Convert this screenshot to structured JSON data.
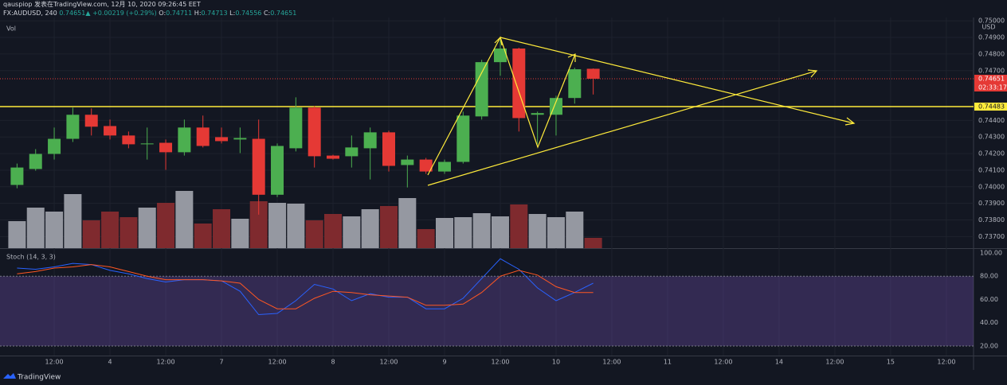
{
  "header": {
    "line1": "qauspiop 发表在TradingView.com, 12月 10, 2020 09:26:45 EET",
    "symbol": "FX:AUDUSD, 240",
    "price": "0.74651",
    "arrow": "▲",
    "change": "+0.00219 (+0.29%)",
    "o_label": "O:",
    "o": "0.74711",
    "h_label": "H:",
    "h": "0.74713",
    "l_label": "L:",
    "l": "0.74556",
    "c_label": "C:",
    "c": "0.74651"
  },
  "footer": {
    "logo": "TradingView"
  },
  "chart_data": [
    {
      "type": "candlestick",
      "currency": "USD",
      "volume_label": "Vol",
      "categories": [
        null,
        null,
        "12:00",
        null,
        null,
        "4",
        null,
        null,
        "12:00",
        null,
        null,
        "7",
        null,
        null,
        "12:00",
        null,
        null,
        "8",
        null,
        null,
        "12:00",
        null,
        null,
        "9",
        null,
        null,
        "12:00",
        null,
        null,
        "10",
        null,
        null,
        "12:00",
        null,
        null,
        "11",
        null,
        null,
        "12:00",
        null,
        null,
        "14",
        null,
        null,
        "12:00",
        null,
        null,
        "15",
        null,
        null,
        "12:00",
        null
      ],
      "open": [
        0.74011,
        0.74107,
        0.74198,
        0.74289,
        0.74434,
        0.74366,
        0.74309,
        0.74256,
        0.74265,
        0.74208,
        0.74357,
        0.74299,
        0.74285,
        0.74289,
        0.73952,
        0.74232,
        0.74477,
        0.74188,
        0.74184,
        0.74232,
        0.74328,
        0.74131,
        0.74164,
        0.74092,
        0.7415,
        0.74424,
        0.74751,
        0.74833,
        0.74434,
        0.74434,
        0.74535,
        0.74711,
        null,
        null,
        null,
        null,
        null,
        null,
        null,
        null,
        null,
        null,
        null,
        null,
        null,
        null,
        null,
        null,
        null,
        null,
        null,
        null
      ],
      "high": [
        0.7414,
        0.74227,
        0.74357,
        0.74477,
        0.74472,
        0.74405,
        0.74333,
        0.74357,
        0.74285,
        0.74405,
        0.74429,
        0.74357,
        0.74357,
        0.74405,
        0.74261,
        0.74539,
        0.74487,
        0.74193,
        0.74309,
        0.74357,
        0.74338,
        0.74188,
        0.74174,
        0.74164,
        0.74453,
        0.74765,
        0.74886,
        0.74838,
        0.74453,
        0.74549,
        0.74717,
        0.74713,
        null,
        null,
        null,
        null,
        null,
        null,
        null,
        null,
        null,
        null,
        null,
        null,
        null,
        null,
        null,
        null,
        null,
        null,
        null,
        null
      ],
      "low": [
        0.73991,
        0.74097,
        0.74164,
        0.7427,
        0.74309,
        0.74285,
        0.74232,
        0.74164,
        0.74102,
        0.74188,
        0.74237,
        0.74261,
        0.74203,
        0.73832,
        0.73938,
        0.74213,
        0.74116,
        0.74164,
        0.74116,
        0.74044,
        0.74092,
        0.73996,
        0.74078,
        0.74078,
        0.7414,
        0.74405,
        0.74669,
        0.74333,
        0.74256,
        0.74309,
        0.74501,
        0.74556,
        null,
        null,
        null,
        null,
        null,
        null,
        null,
        null,
        null,
        null,
        null,
        null,
        null,
        null,
        null,
        null,
        null,
        null,
        null,
        null
      ],
      "close": [
        0.74116,
        0.74198,
        0.74289,
        0.74434,
        0.74362,
        0.74309,
        0.74256,
        0.74261,
        0.74208,
        0.74357,
        0.74246,
        0.74275,
        0.74294,
        0.73952,
        0.74246,
        0.74477,
        0.74184,
        0.74169,
        0.74237,
        0.74328,
        0.74126,
        0.74164,
        0.74092,
        0.7415,
        0.74429,
        0.74751,
        0.74833,
        0.74414,
        0.74444,
        0.74535,
        0.74708,
        0.74651,
        null,
        null,
        null,
        null,
        null,
        null,
        null,
        null,
        null,
        null,
        null,
        null,
        null,
        null,
        null,
        null,
        null,
        null,
        null,
        null
      ],
      "volume": [
        34,
        51,
        46,
        68,
        35,
        46,
        39,
        51,
        57,
        72,
        31,
        49,
        37,
        59,
        57,
        56,
        35,
        43,
        40,
        49,
        53,
        63,
        24,
        38,
        39,
        44,
        40,
        55,
        43,
        39,
        46,
        13,
        null,
        null,
        null,
        null,
        null,
        null,
        null,
        null,
        null,
        null,
        null,
        null,
        null,
        null,
        null,
        null,
        null,
        null,
        null,
        null
      ],
      "up_color": "#4caf50",
      "down_color": "#e53935",
      "volume_up_color": "#9598a1",
      "volume_down_color": "#7f2a2e",
      "ylim": [
        0.7363,
        0.7502
      ],
      "yticks": [
        {
          "value": 0.75,
          "label": "0.75000"
        },
        {
          "value": 0.749,
          "label": "0.74900"
        },
        {
          "value": 0.748,
          "label": "0.74800"
        },
        {
          "value": 0.747,
          "label": "0.74700"
        },
        {
          "value": 0.744,
          "label": "0.74400"
        },
        {
          "value": 0.743,
          "label": "0.74300"
        },
        {
          "value": 0.742,
          "label": "0.74200"
        },
        {
          "value": 0.741,
          "label": "0.74100"
        },
        {
          "value": 0.74,
          "label": "0.74000"
        },
        {
          "value": 0.739,
          "label": "0.73900"
        },
        {
          "value": 0.738,
          "label": "0.73800"
        },
        {
          "value": 0.737,
          "label": "0.73700"
        }
      ],
      "grid": true,
      "last_price": 0.74651,
      "countdown": "02:33:17",
      "hline": 0.74483,
      "hline_color": "#ffeb3b"
    },
    {
      "type": "line",
      "title": "Stoch (14, 3, 3)",
      "series": [
        {
          "name": "%K",
          "color": "#2962ff",
          "values": [
            87,
            86,
            88,
            91,
            90,
            85,
            82,
            78,
            75,
            77,
            77,
            76,
            67,
            47,
            48,
            59,
            73,
            69,
            59,
            65,
            62,
            62,
            52,
            52,
            61,
            78,
            95,
            86,
            70,
            59,
            66,
            74,
            null,
            null,
            null,
            null,
            null,
            null,
            null,
            null,
            null,
            null,
            null,
            null,
            null,
            null,
            null,
            null,
            null,
            null,
            null,
            null
          ]
        },
        {
          "name": "%D",
          "color": "#ff5722",
          "values": [
            82,
            84,
            87,
            88,
            90,
            88,
            84,
            80,
            77,
            77,
            77,
            76,
            74,
            60,
            52,
            52,
            61,
            67,
            66,
            64,
            63,
            62,
            55,
            55,
            56,
            66,
            80,
            85,
            81,
            71,
            66,
            66,
            null,
            null,
            null,
            null,
            null,
            null,
            null,
            null,
            null,
            null,
            null,
            null,
            null,
            null,
            null,
            null,
            null,
            null,
            null,
            null
          ]
        }
      ],
      "ylim": [
        11.8,
        103.4
      ],
      "yticks": [
        {
          "value": 100,
          "label": "100.00"
        },
        {
          "value": 80,
          "label": "80.00"
        },
        {
          "value": 60,
          "label": "60.00"
        },
        {
          "value": 40,
          "label": "40.00"
        },
        {
          "value": 20,
          "label": "20.00"
        }
      ],
      "band": [
        20,
        80
      ],
      "band_color": "#7e57c2"
    }
  ]
}
